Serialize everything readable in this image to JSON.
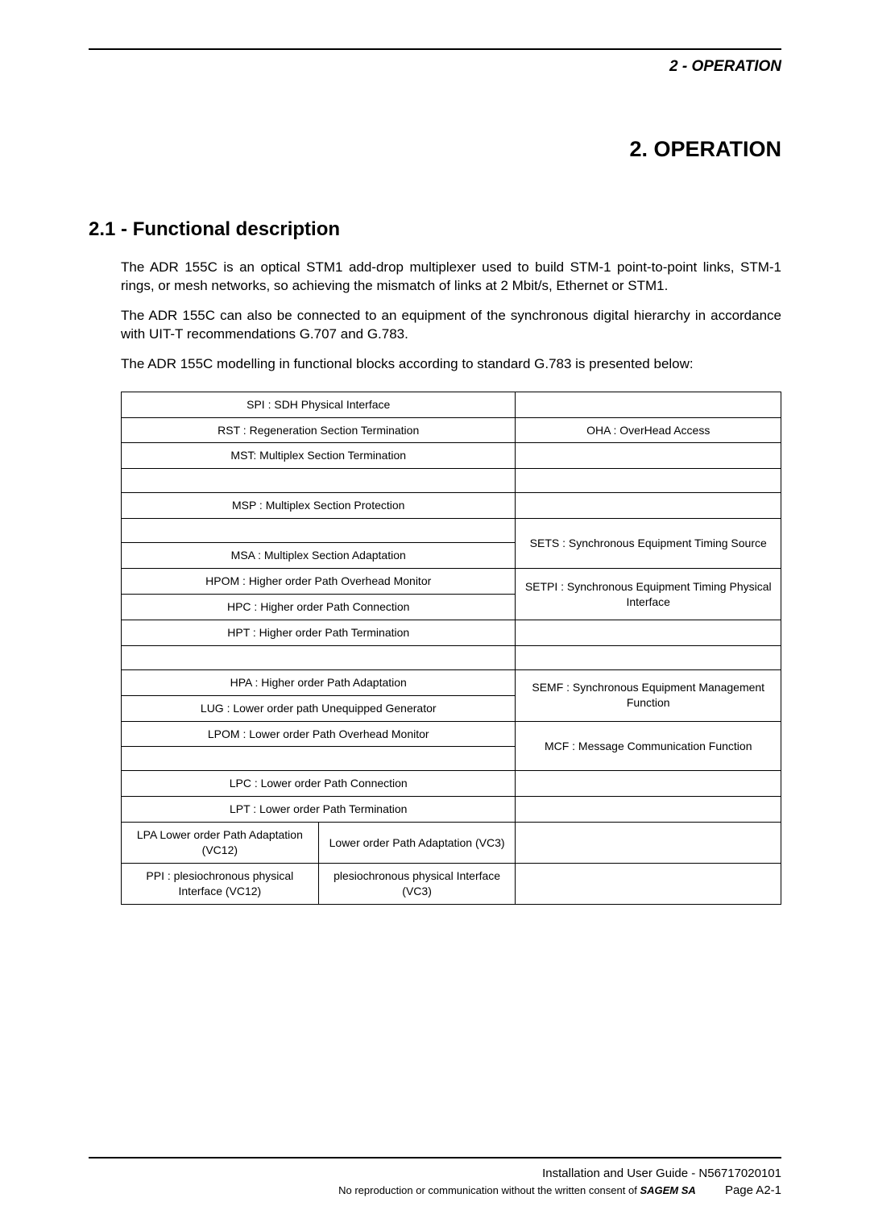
{
  "header": {
    "running": "2 - OPERATION"
  },
  "chapter": {
    "title": "2. OPERATION"
  },
  "section": {
    "title": "2.1 - Functional description"
  },
  "para": {
    "p1": "The ADR 155C is an optical STM1 add-drop multiplexer used to build STM-1 point-to-point links, STM-1 rings, or mesh networks, so achieving the mismatch of links at 2 Mbit/s, Ethernet or STM1.",
    "p2": "The ADR 155C can also be connected to an equipment of the synchronous digital hierarchy in accordance with UIT-T recommendations G.707 and G.783.",
    "p3": "The ADR 155C modelling in functional blocks according to standard G.783 is presented below:"
  },
  "table": {
    "left": {
      "spi": "SPI : SDH Physical Interface",
      "rst": "RST : Regeneration Section Termination",
      "mst": "MST:  Multiplex Section Termination",
      "msp": "MSP : Multiplex Section Protection",
      "msa": "MSA : Multiplex Section Adaptation",
      "hpom": "HPOM : Higher order Path Overhead  Monitor",
      "hpc": "HPC : Higher order Path Connection",
      "hpt": "HPT : Higher order Path Termination",
      "hpa": "HPA : Higher order Path Adaptation",
      "lug": "LUG : Lower order path Unequipped Generator",
      "lpom": "LPOM : Lower order Path Overhead  Monitor",
      "lpc": "LPC : Lower order Path Connection",
      "lpt": "LPT : Lower order Path Termination",
      "lpa_vc12": "LPA Lower order Path Adaptation  (VC12)",
      "lpa_vc3": "Lower order Path Adaptation  (VC3)",
      "ppi_vc12": "PPI : plesiochronous physical Interface  (VC12)",
      "ppi_vc3": "plesiochronous physical Interface  (VC3)"
    },
    "right": {
      "oha": "OHA : OverHead Access",
      "sets": "SETS : Synchronous Equipment Timing Source",
      "setpi": "SETPI : Synchronous Equipment Timing Physical Interface",
      "semf": "SEMF : Synchronous Equipment Management Function",
      "mcf": "MCF : Message Communication Function"
    }
  },
  "footer": {
    "l1": "Installation and User Guide - N56717020101",
    "l2a": "No reproduction or communication without the written consent of ",
    "l2b": "SAGEM SA",
    "page_label": "Page A2-1"
  },
  "style": {
    "body_font_pt": 17,
    "title_font_pt": 27,
    "section_font_pt": 24,
    "table_font_pt": 14,
    "footer_font_pt": 15,
    "text_color": "#000000",
    "background_color": "#ffffff",
    "rule_color": "#000000"
  }
}
